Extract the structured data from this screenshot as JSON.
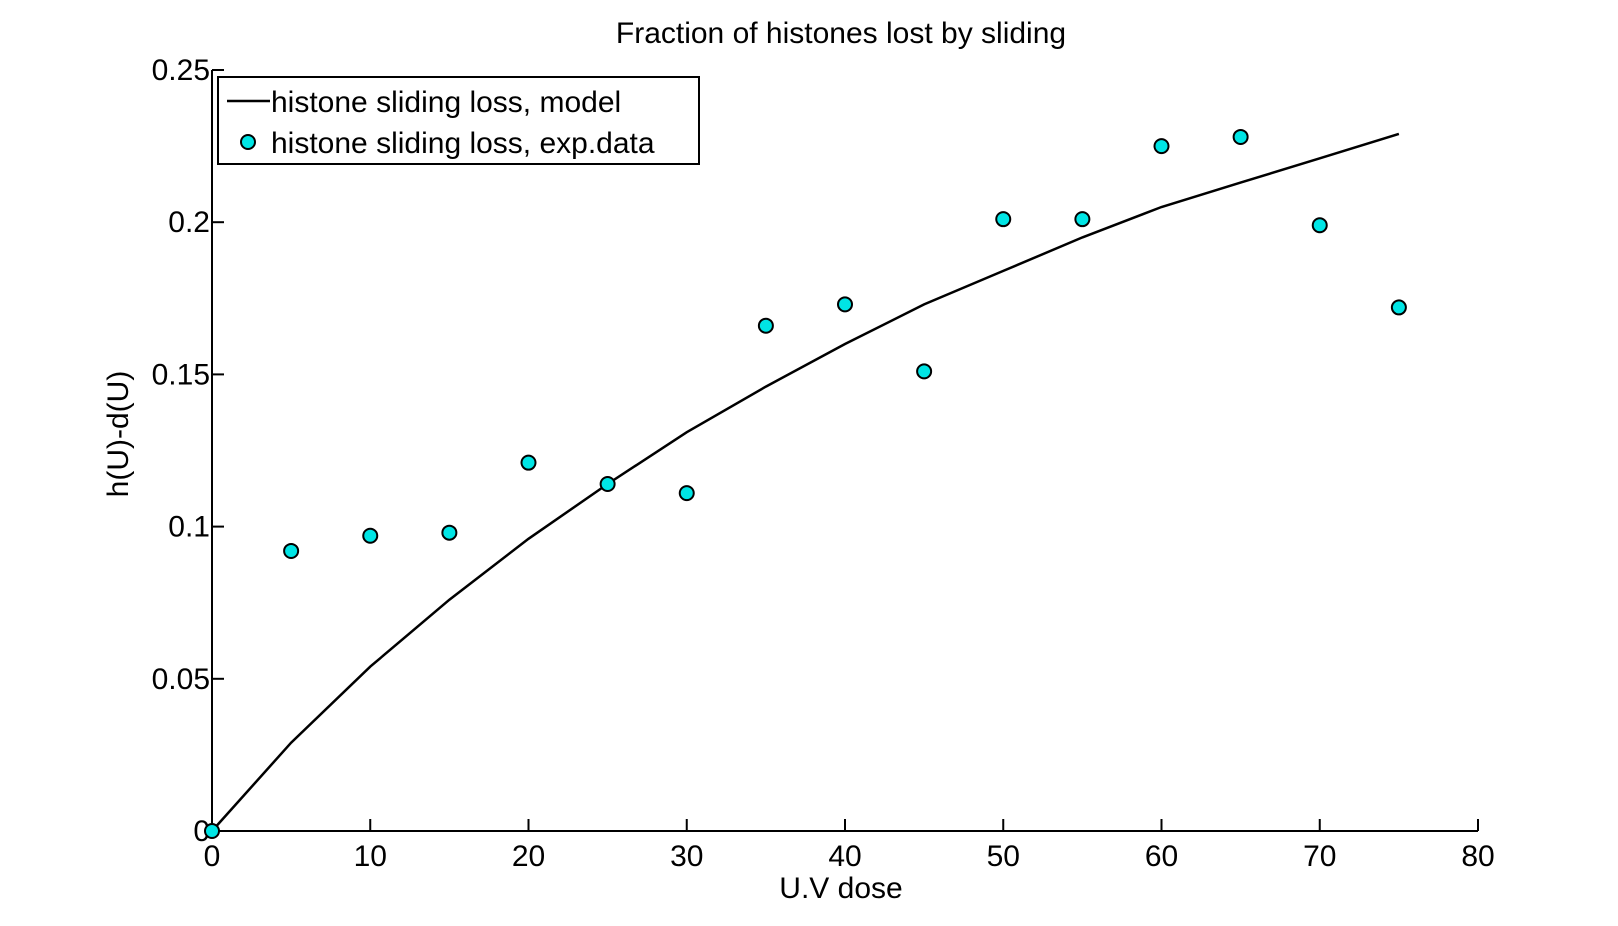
{
  "chart_data": {
    "type": "line+scatter",
    "title": "Fraction of histones lost by sliding",
    "xlabel": "U.V dose",
    "ylabel": "h(U)-d(U)",
    "xlim": [
      0,
      80
    ],
    "ylim": [
      0,
      0.25
    ],
    "xticks": [
      0,
      10,
      20,
      30,
      40,
      50,
      60,
      70,
      80
    ],
    "yticks": [
      0,
      0.05,
      0.1,
      0.15,
      0.2,
      0.25
    ],
    "xtick_labels": [
      "0",
      "10",
      "20",
      "30",
      "40",
      "50",
      "60",
      "70",
      "80"
    ],
    "ytick_labels": [
      "0",
      "0.05",
      "0.1",
      "0.15",
      "0.2",
      "0.25"
    ],
    "legend_position": "top-left",
    "series": [
      {
        "name": "histone sliding loss, model",
        "kind": "line",
        "color": "#000000",
        "x": [
          0,
          5,
          10,
          15,
          20,
          25,
          30,
          35,
          40,
          45,
          50,
          55,
          60,
          65,
          70,
          75
        ],
        "y": [
          0,
          0.029,
          0.054,
          0.076,
          0.096,
          0.114,
          0.131,
          0.146,
          0.16,
          0.173,
          0.184,
          0.195,
          0.205,
          0.213,
          0.221,
          0.229
        ]
      },
      {
        "name": "histone sliding loss, exp.data",
        "kind": "scatter",
        "color": "#00e5e5",
        "x": [
          0,
          5,
          10,
          15,
          20,
          25,
          30,
          35,
          40,
          45,
          50,
          55,
          60,
          65,
          70,
          75
        ],
        "y": [
          0,
          0.092,
          0.097,
          0.098,
          0.121,
          0.114,
          0.111,
          0.166,
          0.173,
          0.151,
          0.201,
          0.201,
          0.225,
          0.228,
          0.199,
          0.172
        ]
      }
    ]
  }
}
